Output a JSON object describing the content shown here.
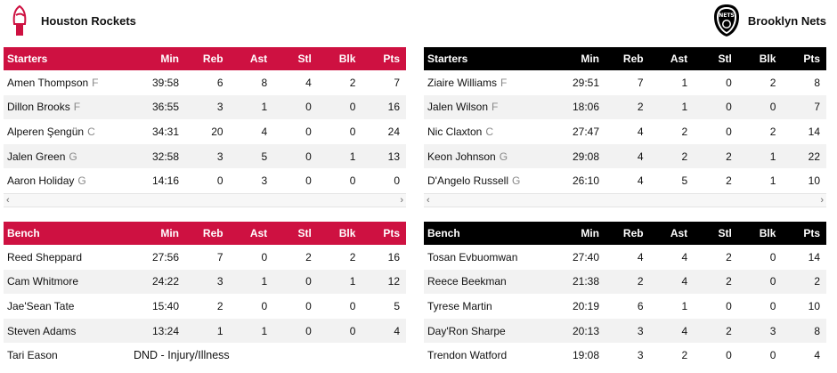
{
  "home": {
    "name": "Houston Rockets",
    "logo_icon": "rockets-logo-icon",
    "accent": "#ce1141",
    "columns": [
      "Min",
      "Reb",
      "Ast",
      "Stl",
      "Blk",
      "Pts"
    ],
    "starters_label": "Starters",
    "bench_label": "Bench",
    "starters": [
      {
        "name": "Amen Thompson",
        "pos": "F",
        "min": "39:58",
        "reb": "6",
        "ast": "8",
        "stl": "4",
        "blk": "2",
        "pts": "7"
      },
      {
        "name": "Dillon Brooks",
        "pos": "F",
        "min": "36:55",
        "reb": "3",
        "ast": "1",
        "stl": "0",
        "blk": "0",
        "pts": "16"
      },
      {
        "name": "Alperen Şengün",
        "pos": "C",
        "min": "34:31",
        "reb": "20",
        "ast": "4",
        "stl": "0",
        "blk": "0",
        "pts": "24"
      },
      {
        "name": "Jalen Green",
        "pos": "G",
        "min": "32:58",
        "reb": "3",
        "ast": "5",
        "stl": "0",
        "blk": "1",
        "pts": "13"
      },
      {
        "name": "Aaron Holiday",
        "pos": "G",
        "min": "14:16",
        "reb": "0",
        "ast": "3",
        "stl": "0",
        "blk": "0",
        "pts": "0"
      }
    ],
    "bench": [
      {
        "name": "Reed Sheppard",
        "min": "27:56",
        "reb": "7",
        "ast": "0",
        "stl": "2",
        "blk": "2",
        "pts": "16"
      },
      {
        "name": "Cam Whitmore",
        "min": "24:22",
        "reb": "3",
        "ast": "1",
        "stl": "0",
        "blk": "1",
        "pts": "12"
      },
      {
        "name": "Jae'Sean Tate",
        "min": "15:40",
        "reb": "2",
        "ast": "0",
        "stl": "0",
        "blk": "0",
        "pts": "5"
      },
      {
        "name": "Steven Adams",
        "min": "13:24",
        "reb": "1",
        "ast": "1",
        "stl": "0",
        "blk": "0",
        "pts": "4"
      },
      {
        "name": "Tari Eason",
        "status": "DND - Injury/Illness"
      }
    ]
  },
  "away": {
    "name": "Brooklyn Nets",
    "logo_icon": "nets-logo-icon",
    "accent": "#000000",
    "logo_text": "NETS",
    "columns": [
      "Min",
      "Reb",
      "Ast",
      "Stl",
      "Blk",
      "Pts"
    ],
    "starters_label": "Starters",
    "bench_label": "Bench",
    "starters": [
      {
        "name": "Ziaire Williams",
        "pos": "F",
        "min": "29:51",
        "reb": "7",
        "ast": "1",
        "stl": "0",
        "blk": "2",
        "pts": "8"
      },
      {
        "name": "Jalen Wilson",
        "pos": "F",
        "min": "18:06",
        "reb": "2",
        "ast": "1",
        "stl": "0",
        "blk": "0",
        "pts": "7"
      },
      {
        "name": "Nic Claxton",
        "pos": "C",
        "min": "27:47",
        "reb": "4",
        "ast": "2",
        "stl": "0",
        "blk": "2",
        "pts": "14"
      },
      {
        "name": "Keon Johnson",
        "pos": "G",
        "min": "29:08",
        "reb": "4",
        "ast": "2",
        "stl": "2",
        "blk": "1",
        "pts": "22"
      },
      {
        "name": "D'Angelo Russell",
        "pos": "G",
        "min": "26:10",
        "reb": "4",
        "ast": "5",
        "stl": "2",
        "blk": "1",
        "pts": "10"
      }
    ],
    "bench": [
      {
        "name": "Tosan Evbuomwan",
        "min": "27:40",
        "reb": "4",
        "ast": "4",
        "stl": "2",
        "blk": "0",
        "pts": "14"
      },
      {
        "name": "Reece Beekman",
        "min": "21:38",
        "reb": "2",
        "ast": "4",
        "stl": "2",
        "blk": "0",
        "pts": "2"
      },
      {
        "name": "Tyrese Martin",
        "min": "20:19",
        "reb": "6",
        "ast": "1",
        "stl": "0",
        "blk": "0",
        "pts": "10"
      },
      {
        "name": "Day'Ron Sharpe",
        "min": "20:13",
        "reb": "3",
        "ast": "4",
        "stl": "2",
        "blk": "3",
        "pts": "8"
      },
      {
        "name": "Trendon Watford",
        "min": "19:08",
        "reb": "3",
        "ast": "2",
        "stl": "0",
        "blk": "0",
        "pts": "4"
      }
    ]
  },
  "scroll": {
    "left_arrow": "‹",
    "right_arrow": "›"
  }
}
